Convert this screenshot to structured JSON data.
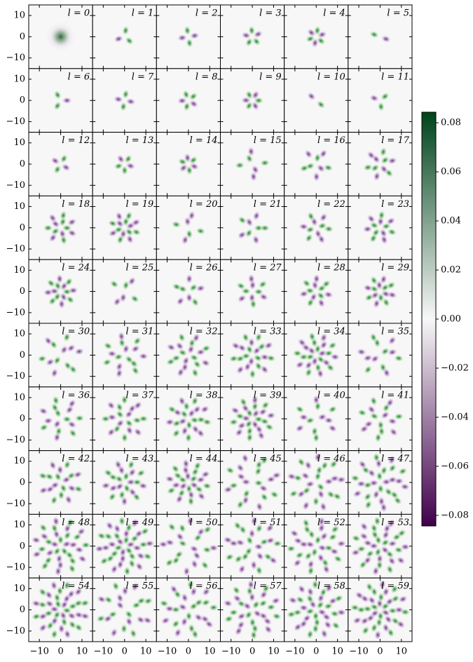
{
  "chart_data": {
    "type": "heatmap-grid",
    "panels": [
      "l = 0",
      "l = 1",
      "l = 2",
      "l = 3",
      "l = 4",
      "l = 5",
      "l = 6",
      "l = 7",
      "l = 8",
      "l = 9",
      "l = 10",
      "l = 11",
      "l = 12",
      "l = 13",
      "l = 14",
      "l = 15",
      "l = 16",
      "l = 17",
      "l = 18",
      "l = 19",
      "l = 20",
      "l = 21",
      "l = 22",
      "l = 23",
      "l = 24",
      "l = 25",
      "l = 26",
      "l = 27",
      "l = 28",
      "l = 29",
      "l = 30",
      "l = 31",
      "l = 32",
      "l = 33",
      "l = 34",
      "l = 35",
      "l = 36",
      "l = 37",
      "l = 38",
      "l = 39",
      "l = 40",
      "l = 41",
      "l = 42",
      "l = 43",
      "l = 44",
      "l = 45",
      "l = 46",
      "l = 47",
      "l = 48",
      "l = 49",
      "l = 50",
      "l = 51",
      "l = 52",
      "l = 53",
      "l = 54",
      "l = 55",
      "l = 56",
      "l = 57",
      "l = 58",
      "l = 59"
    ],
    "columns": 6,
    "xlim": [
      -15,
      15
    ],
    "ylim": [
      -15,
      15
    ],
    "xticks": [
      {
        "value": -10,
        "label": "−10"
      },
      0,
      10
    ],
    "yticks": [
      {
        "value": -10,
        "label": "−10"
      },
      0,
      10
    ],
    "colorbar": {
      "clim": [
        -0.0843,
        0.0843
      ],
      "ticks": [
        {
          "value": -0.08,
          "label": "−0.08"
        },
        {
          "value": -0.06,
          "label": "−0.06"
        },
        {
          "value": -0.04,
          "label": "−0.04"
        },
        {
          "value": -0.02,
          "label": "−0.02"
        },
        {
          "value": 0,
          "label": "0.00"
        },
        0.02,
        0.04,
        0.06,
        0.08
      ],
      "colors": [
        "#40004b",
        "#f7f7f7",
        "#00441b"
      ]
    }
  }
}
